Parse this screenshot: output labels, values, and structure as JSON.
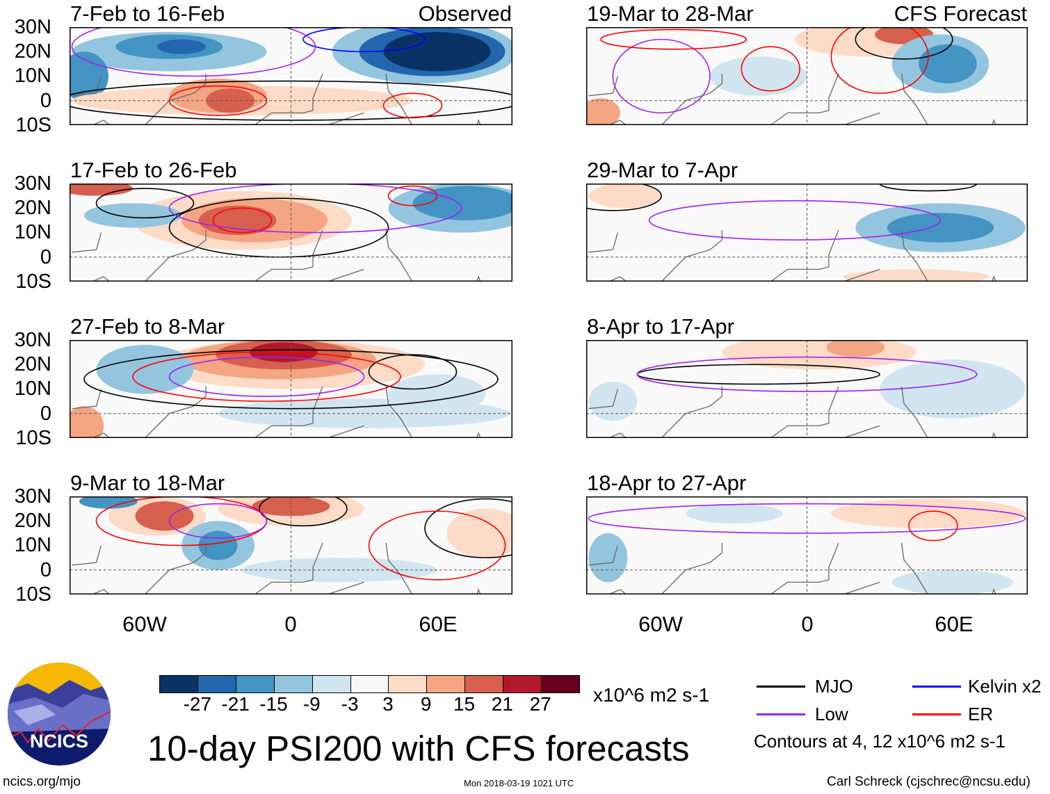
{
  "panels_left": [
    {
      "title": "7-Feb to 16-Feb",
      "tag": "Observed"
    },
    {
      "title": "17-Feb to 26-Feb"
    },
    {
      "title": "27-Feb to 8-Mar"
    },
    {
      "title": "9-Mar to 18-Mar"
    }
  ],
  "panels_right": [
    {
      "title": "19-Mar to 28-Mar",
      "tag": "CFS Forecast"
    },
    {
      "title": "29-Mar to 7-Apr"
    },
    {
      "title": "8-Apr to 17-Apr"
    },
    {
      "title": "18-Apr to 27-Apr"
    }
  ],
  "lat_labels": [
    "30N",
    "20N",
    "10N",
    "0",
    "10S"
  ],
  "lon_labels": [
    "60W",
    "0",
    "60E"
  ],
  "colorbar": {
    "levels": [
      "-27",
      "-21",
      "-15",
      "-9",
      "-3",
      "3",
      "9",
      "15",
      "21",
      "27"
    ],
    "colors": [
      "#0b3265",
      "#2266ad",
      "#4393c3",
      "#93c5de",
      "#d1e5f0",
      "#f7f7f7",
      "#fddbc7",
      "#f4a582",
      "#d6604d",
      "#b2182b",
      "#67001f"
    ],
    "units": "x10^6 m2 s-1"
  },
  "legend": {
    "items": [
      {
        "label": "MJO",
        "color": "#000000"
      },
      {
        "label": "Kelvin x2",
        "color": "#0000ff"
      },
      {
        "label": "Low",
        "color": "#a020f0"
      },
      {
        "label": "ER",
        "color": "#ff0000"
      }
    ],
    "note": "Contours at 4, 12 x10^6 m2 s-1"
  },
  "logo": {
    "text": "NCICS"
  },
  "main_title": "10-day PSI200 with CFS forecasts",
  "footer": {
    "left": "ncics.org/mjo",
    "center": "Mon 2018-03-19 1021 UTC",
    "right": "Carl Schreck (cjschrec@ncsu.edu)"
  }
}
